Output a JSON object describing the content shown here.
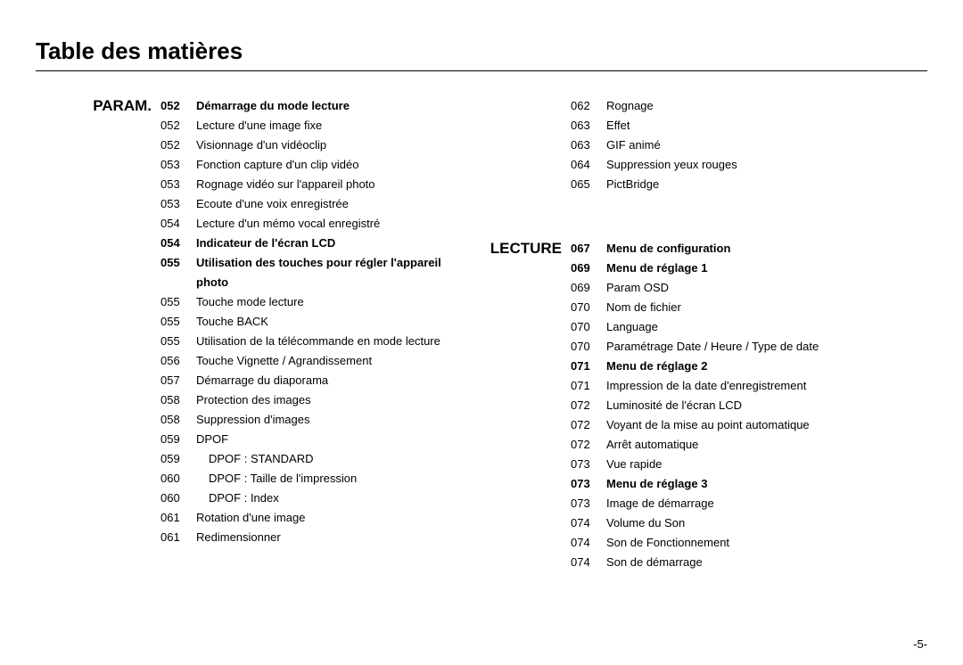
{
  "page_title": "Table des matières",
  "page_number": "-5-",
  "left": {
    "section": "PARAM.",
    "items": [
      {
        "num": "052",
        "label": "Démarrage du mode lecture",
        "bold": true
      },
      {
        "num": "052",
        "label": "Lecture d'une image fixe"
      },
      {
        "num": "052",
        "label": "Visionnage d'un vidéoclip"
      },
      {
        "num": "053",
        "label": "Fonction capture d'un clip vidéo"
      },
      {
        "num": "053",
        "label": "Rognage vidéo sur l'appareil photo"
      },
      {
        "num": "053",
        "label": "Ecoute d'une voix enregistrée"
      },
      {
        "num": "054",
        "label": "Lecture d'un mémo vocal enregistré"
      },
      {
        "num": "054",
        "label": "Indicateur de l'écran LCD",
        "bold": true
      },
      {
        "num": "055",
        "label": "Utilisation des touches pour régler l'appareil photo",
        "bold": true
      },
      {
        "num": "055",
        "label": "Touche mode lecture"
      },
      {
        "num": "055",
        "label": "Touche BACK"
      },
      {
        "num": "055",
        "label": "Utilisation de la télécommande en mode lecture"
      },
      {
        "num": "056",
        "label": "Touche Vignette / Agrandissement"
      },
      {
        "num": "057",
        "label": "Démarrage du diaporama"
      },
      {
        "num": "058",
        "label": "Protection des images"
      },
      {
        "num": "058",
        "label": "Suppression d'images"
      },
      {
        "num": "059",
        "label": "DPOF"
      },
      {
        "num": "059",
        "label": "DPOF : STANDARD",
        "indent": true
      },
      {
        "num": "060",
        "label": "DPOF : Taille de l'impression",
        "indent": true
      },
      {
        "num": "060",
        "label": "DPOF : Index",
        "indent": true
      },
      {
        "num": "061",
        "label": "Rotation d'une image"
      },
      {
        "num": "061",
        "label": "Redimensionner"
      }
    ]
  },
  "right_top": {
    "items": [
      {
        "num": "062",
        "label": "Rognage"
      },
      {
        "num": "063",
        "label": "Effet"
      },
      {
        "num": "063",
        "label": "GIF animé"
      },
      {
        "num": "064",
        "label": "Suppression yeux rouges"
      },
      {
        "num": "065",
        "label": "PictBridge"
      }
    ]
  },
  "right_bottom": {
    "section": "LECTURE",
    "items": [
      {
        "num": "067",
        "label": "Menu de configuration",
        "bold": true
      },
      {
        "num": "069",
        "label": "Menu de réglage 1",
        "bold": true
      },
      {
        "num": "069",
        "label": "Param OSD"
      },
      {
        "num": "070",
        "label": "Nom de fichier"
      },
      {
        "num": "070",
        "label": "Language"
      },
      {
        "num": "070",
        "label": "Paramétrage Date / Heure / Type de date"
      },
      {
        "num": "071",
        "label": "Menu de réglage 2",
        "bold": true
      },
      {
        "num": "071",
        "label": "Impression de la date d'enregistrement"
      },
      {
        "num": "072",
        "label": "Luminosité de l'écran LCD"
      },
      {
        "num": "072",
        "label": "Voyant de la mise au point automatique"
      },
      {
        "num": "072",
        "label": "Arrêt automatique"
      },
      {
        "num": "073",
        "label": "Vue rapide"
      },
      {
        "num": "073",
        "label": "Menu de réglage 3",
        "bold": true
      },
      {
        "num": "073",
        "label": "Image de démarrage"
      },
      {
        "num": "074",
        "label": "Volume du Son"
      },
      {
        "num": "074",
        "label": "Son de Fonctionnement"
      },
      {
        "num": "074",
        "label": "Son de démarrage"
      }
    ]
  }
}
